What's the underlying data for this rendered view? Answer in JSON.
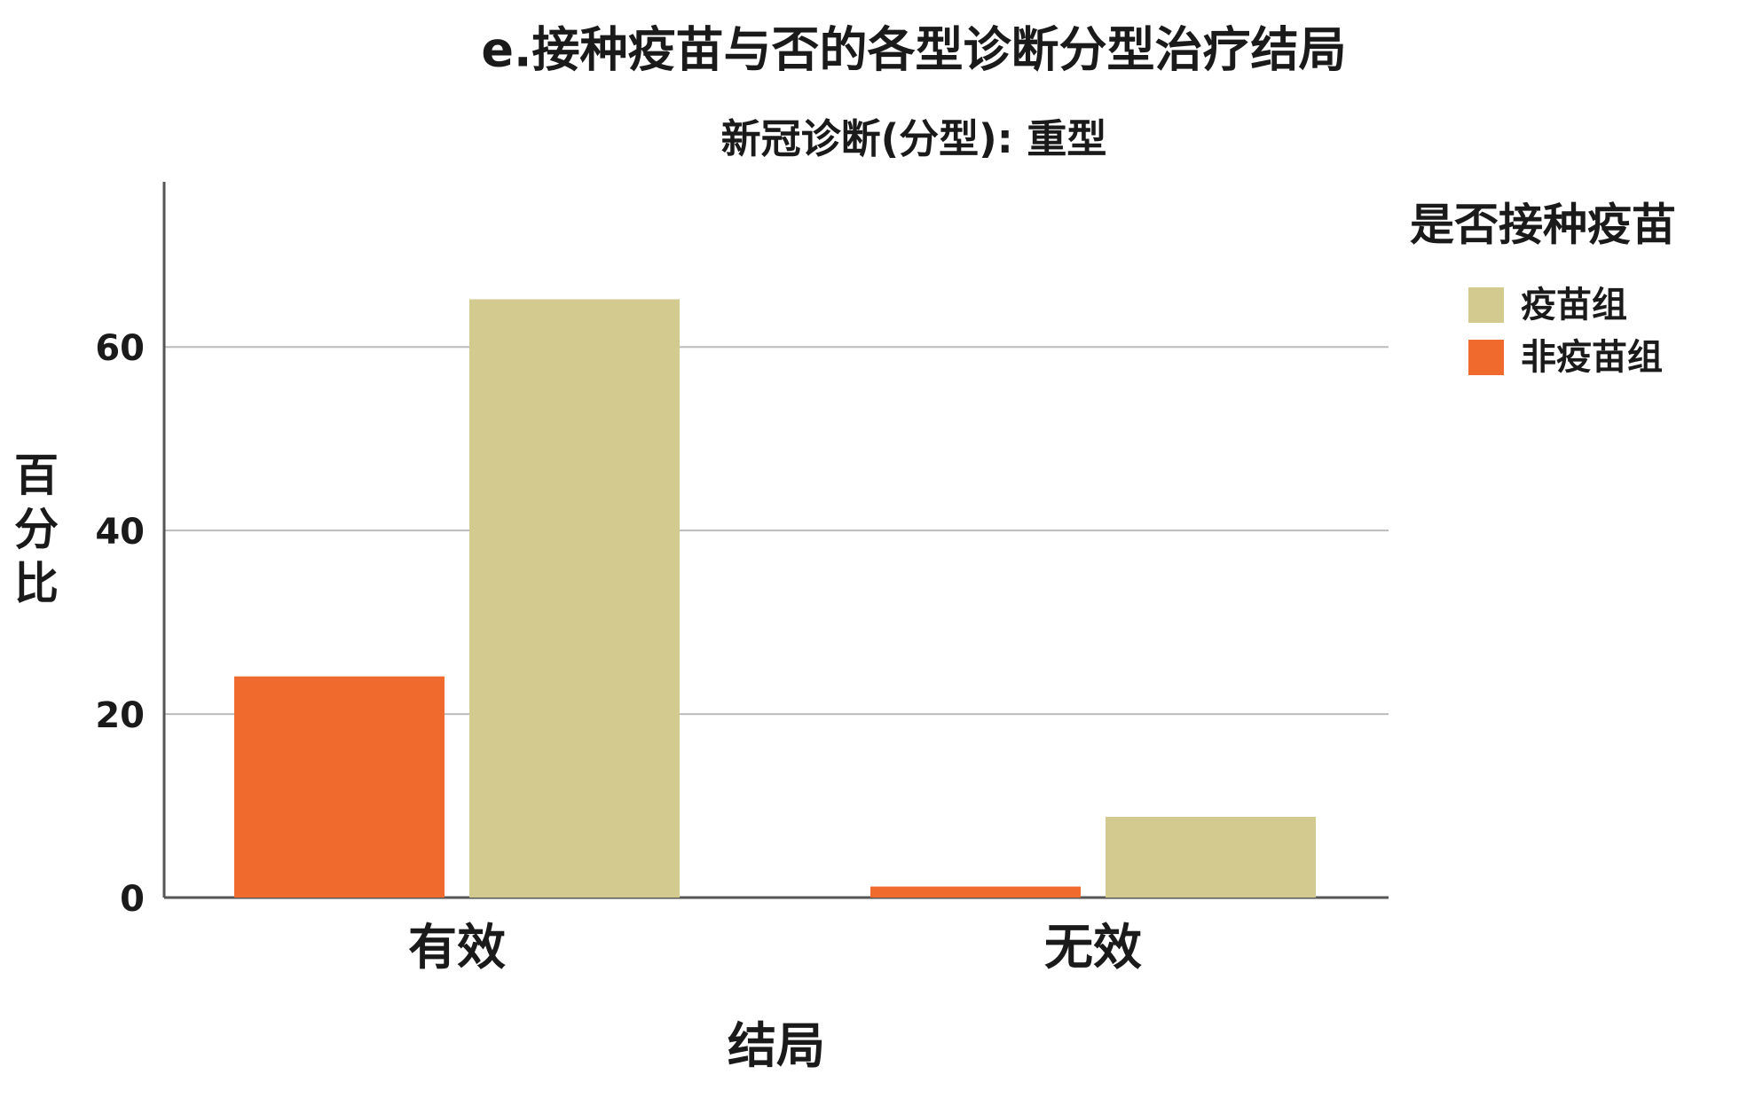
{
  "chart_data": {
    "type": "bar",
    "title": "e.接种疫苗与否的各型诊断分型治疗结局",
    "subtitle": "新冠诊断(分型): 重型",
    "x_label": "结局",
    "y_label": "百分比",
    "legend_title": "是否接种疫苗",
    "categories": [
      "有效",
      "无效"
    ],
    "series": [
      {
        "name": "疫苗组",
        "color": "#d3ca8f",
        "values": [
          65.2,
          8.8
        ]
      },
      {
        "name": "非疫苗组",
        "color": "#f0692d",
        "values": [
          24.1,
          1.2
        ]
      }
    ],
    "ylim": [
      0,
      78
    ],
    "yticks": [
      0,
      20,
      40,
      60
    ],
    "grid": true,
    "legend": "right"
  }
}
